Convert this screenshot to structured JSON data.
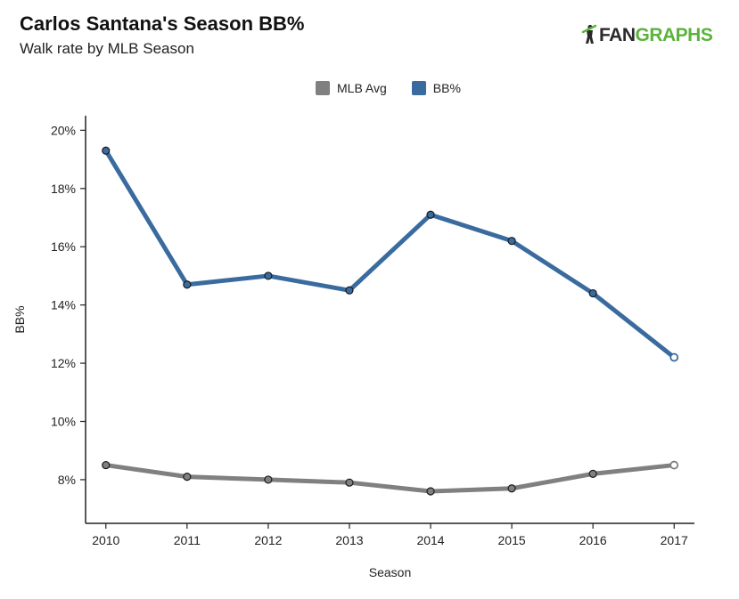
{
  "header": {
    "title": "Carlos Santana's Season BB%",
    "subtitle": "Walk rate by MLB Season"
  },
  "logo": {
    "part1": "FAN",
    "part2": "GRAPHS",
    "icon": "batter-icon"
  },
  "colors": {
    "bb": "#3a6b9f",
    "mlb": "#808080",
    "axis": "#222222"
  },
  "chart_data": {
    "type": "line",
    "title": "Carlos Santana's Season BB%",
    "subtitle": "Walk rate by MLB Season",
    "xlabel": "Season",
    "ylabel": "BB%",
    "x": [
      2010,
      2011,
      2012,
      2013,
      2014,
      2015,
      2016,
      2017
    ],
    "ylim": [
      6.5,
      20.5
    ],
    "yticks": [
      8,
      10,
      12,
      14,
      16,
      18,
      20
    ],
    "ytick_labels": [
      "8%",
      "10%",
      "12%",
      "14%",
      "16%",
      "18%",
      "20%"
    ],
    "grid": false,
    "legend": "top-center",
    "series": [
      {
        "name": "MLB Avg",
        "color": "#808080",
        "values": [
          8.5,
          8.1,
          8.0,
          7.9,
          7.6,
          7.7,
          8.2,
          8.5
        ]
      },
      {
        "name": "BB%",
        "color": "#3a6b9f",
        "values": [
          19.3,
          14.7,
          15.0,
          14.5,
          17.1,
          16.2,
          14.4,
          12.2
        ]
      }
    ]
  }
}
